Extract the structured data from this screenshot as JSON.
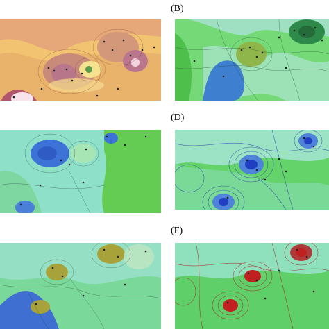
{
  "figure": {
    "panels": [
      {
        "id": "A",
        "label": "",
        "palette": "warm",
        "colors": [
          "#f2c471",
          "#e6a167",
          "#c98b79",
          "#f4e28f",
          "#b0556b"
        ]
      },
      {
        "id": "B",
        "label": "(B)",
        "palette": "green-blue",
        "colors": [
          "#74d976",
          "#9ee0c1",
          "#3f7fd0",
          "#4fbf4c",
          "#2e8a4a"
        ]
      },
      {
        "id": "C",
        "label": "",
        "palette": "green-blue",
        "colors": [
          "#8fe0c9",
          "#64cc52",
          "#3d72d6",
          "#a8e5b5"
        ]
      },
      {
        "id": "D",
        "label": "(D)",
        "palette": "green-blue-contour",
        "colors": [
          "#63d36a",
          "#9be3c4",
          "#1f3fc0",
          "#4f82d9"
        ]
      },
      {
        "id": "E",
        "label": "",
        "palette": "green-blue-olive",
        "colors": [
          "#7ad99a",
          "#3f6fd1",
          "#a7a23a",
          "#95dfc4"
        ]
      },
      {
        "id": "F",
        "label": "(F)",
        "palette": "green-red-contour",
        "colors": [
          "#5fcf6a",
          "#8fe0bd",
          "#c02020",
          "#b03a3a"
        ]
      }
    ]
  }
}
